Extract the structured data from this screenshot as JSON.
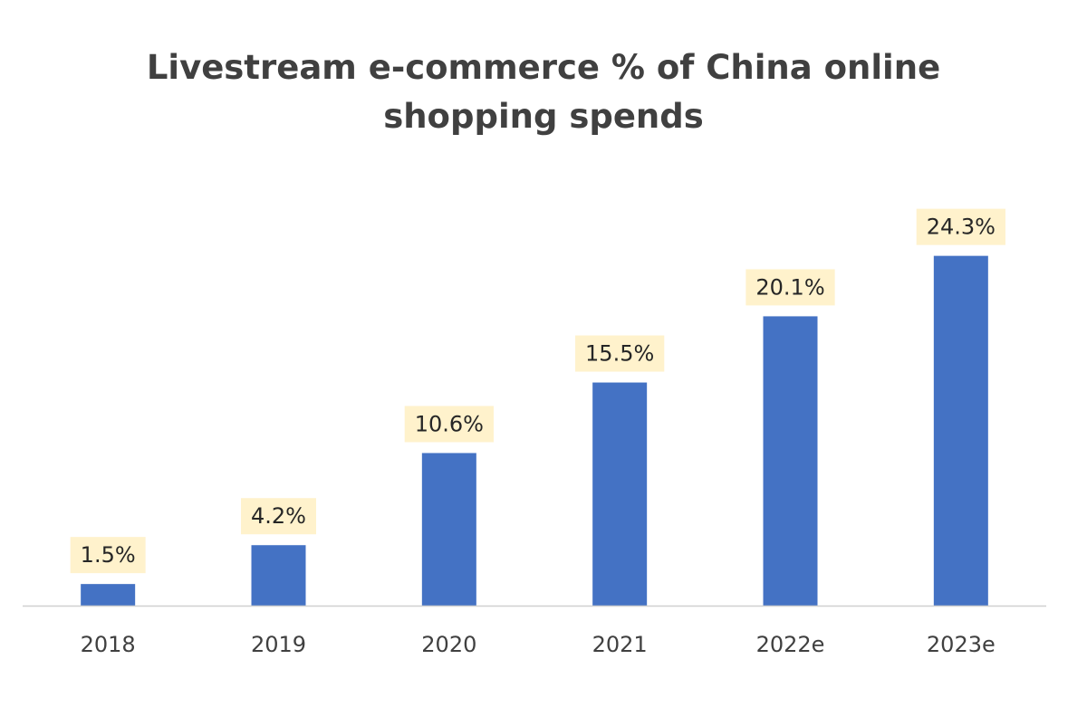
{
  "chart_data": {
    "type": "bar",
    "title_lines": [
      "Livestream e-commerce % of China online",
      "shopping spends"
    ],
    "categories": [
      "2018",
      "2019",
      "2020",
      "2021",
      "2022e",
      "2023e"
    ],
    "values": [
      1.5,
      4.2,
      10.6,
      15.5,
      20.1,
      24.3
    ],
    "data_labels": [
      "1.5%",
      "4.2%",
      "10.6%",
      "15.5%",
      "20.1%",
      "24.3%"
    ],
    "xlabel": "",
    "ylabel": "",
    "ylim": [
      0,
      25
    ],
    "grid": false,
    "legend": "none",
    "colors": {
      "bar": "#4472C4",
      "label_background": "#FFF2CC",
      "axis": "#D0D0D0",
      "title": "#404040"
    }
  }
}
